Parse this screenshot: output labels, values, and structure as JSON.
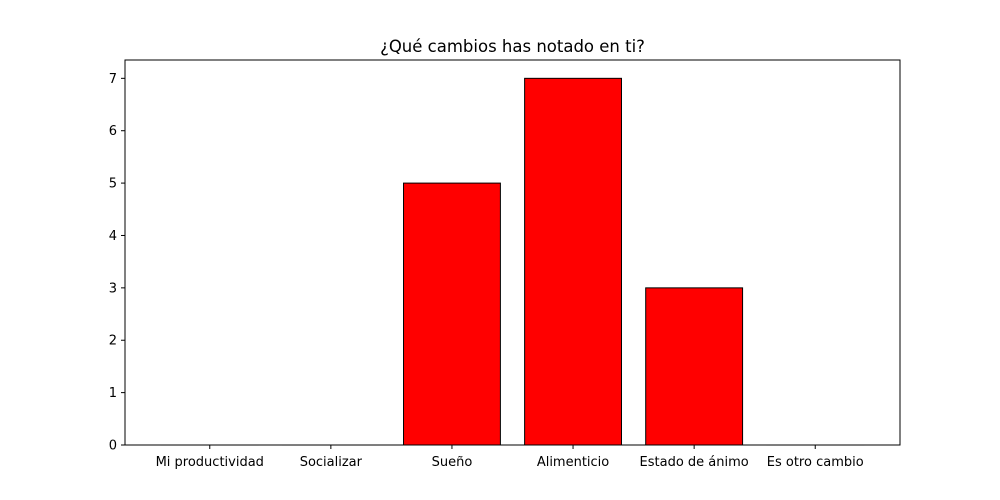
{
  "chart_data": {
    "type": "bar",
    "title": "¿Qué cambios has notado en ti?",
    "xlabel": "",
    "ylabel": "",
    "categories": [
      "Mi productividad",
      "Socializar",
      "Sueño",
      "Alimenticio",
      "Estado de ánimo",
      "Es otro cambio"
    ],
    "values": [
      0,
      0,
      5,
      7,
      3,
      0
    ],
    "ylim": [
      0,
      7.35
    ],
    "yticks": [
      "0",
      "1",
      "2",
      "3",
      "4",
      "5",
      "6",
      "7"
    ],
    "grid": false,
    "legend": "none",
    "bar_color": "#ff0000",
    "edge_color": "#000000"
  }
}
